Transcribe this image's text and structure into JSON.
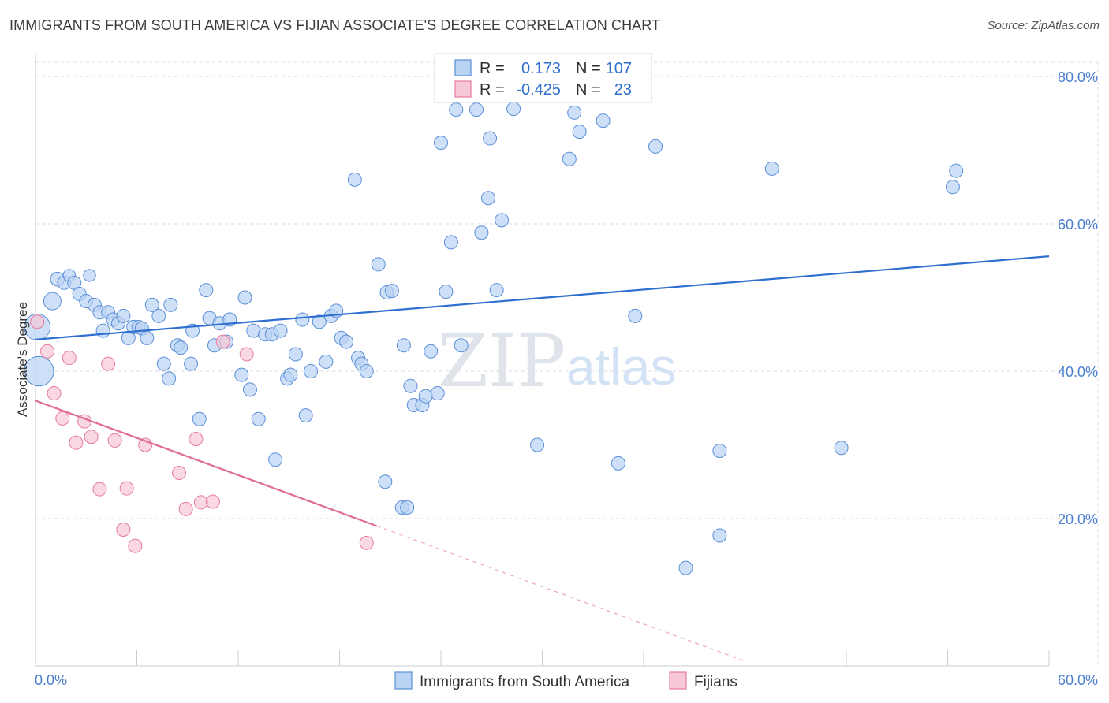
{
  "header": {
    "title": "IMMIGRANTS FROM SOUTH AMERICA VS FIJIAN ASSOCIATE'S DEGREE CORRELATION CHART",
    "source": "Source: ZipAtlas.com"
  },
  "watermark": {
    "zip": "ZIP",
    "atlas": "atlas"
  },
  "colors": {
    "blue": "#5b8fd8",
    "blue_fill": "#b9d3f3",
    "blue_line": "#2e6fcf",
    "pink": "#e77ca0",
    "pink_fill": "#f7c8d6",
    "pink_line": "#e06b96",
    "grid": "#d9dde3",
    "tick_text": "#4a7fd0"
  },
  "chart_data": {
    "type": "scatter",
    "title": "IMMIGRANTS FROM SOUTH AMERICA VS FIJIAN ASSOCIATE'S DEGREE CORRELATION CHART",
    "xlabel": "",
    "ylabel": "Associate's Degree",
    "xlim": [
      0,
      60
    ],
    "ylim": [
      0,
      80
    ],
    "x_tick_labels": [
      "0.0%",
      "60.0%"
    ],
    "y_ticks": [
      20,
      40,
      60,
      80
    ],
    "y_tick_labels": [
      "20.0%",
      "40.0%",
      "60.0%",
      "80.0%"
    ],
    "grid": true,
    "legend_stats": [
      {
        "r_label": "R =",
        "r_value": "0.173",
        "n_label": "N =",
        "n_value": "107"
      },
      {
        "r_label": "R =",
        "r_value": "-0.425",
        "n_label": "N =",
        "n_value": "23"
      }
    ],
    "series": [
      {
        "name": "Immigrants from South America",
        "trend": {
          "x": [
            0,
            60
          ],
          "y": [
            44.3,
            55.6
          ],
          "dashed_to_x": null
        },
        "points": [
          [
            0.1,
            46,
            30
          ],
          [
            0.2,
            40,
            34
          ],
          [
            1,
            49.5,
            20
          ],
          [
            1.3,
            52.5,
            16
          ],
          [
            1.7,
            52,
            12
          ],
          [
            2,
            53,
            14
          ],
          [
            2.3,
            52,
            12
          ],
          [
            2.6,
            50.5,
            12
          ],
          [
            3,
            49.5,
            12
          ],
          [
            3.2,
            53,
            14
          ],
          [
            3.5,
            49,
            12
          ],
          [
            3.8,
            48,
            12
          ],
          [
            4,
            45.5,
            12
          ],
          [
            4.3,
            48,
            12
          ],
          [
            4.6,
            47,
            12
          ],
          [
            4.9,
            46.5,
            12
          ],
          [
            5.2,
            47.5,
            12
          ],
          [
            5.5,
            44.5,
            12
          ],
          [
            5.8,
            46,
            12
          ],
          [
            6.1,
            46,
            12
          ],
          [
            6.3,
            45.8,
            12
          ],
          [
            6.6,
            44.5,
            12
          ],
          [
            6.9,
            49,
            12
          ],
          [
            7.3,
            47.5,
            12
          ],
          [
            7.6,
            41,
            12
          ],
          [
            7.9,
            39,
            12
          ],
          [
            8,
            49,
            12
          ],
          [
            8.4,
            43.5,
            12
          ],
          [
            8.6,
            43.2,
            12
          ],
          [
            9.2,
            41,
            12
          ],
          [
            9.3,
            45.5,
            12
          ],
          [
            9.7,
            33.5,
            12
          ],
          [
            10.1,
            51,
            12
          ],
          [
            10.3,
            47.2,
            12
          ],
          [
            10.6,
            43.5,
            12
          ],
          [
            10.9,
            46.5,
            12
          ],
          [
            11.3,
            44,
            12
          ],
          [
            11.5,
            47,
            12
          ],
          [
            12.2,
            39.5,
            12
          ],
          [
            12.4,
            50,
            12
          ],
          [
            12.7,
            37.5,
            12
          ],
          [
            12.9,
            45.5,
            12
          ],
          [
            13.2,
            33.5,
            12
          ],
          [
            13.6,
            45,
            12
          ],
          [
            14,
            45,
            12
          ],
          [
            14.2,
            28,
            12
          ],
          [
            14.5,
            45.5,
            12
          ],
          [
            14.9,
            39,
            12
          ],
          [
            15.1,
            39.5,
            12
          ],
          [
            15.4,
            42.3,
            12
          ],
          [
            15.8,
            47,
            12
          ],
          [
            16,
            34,
            12
          ],
          [
            16.3,
            40,
            12
          ],
          [
            16.8,
            46.7,
            12
          ],
          [
            17.2,
            41.3,
            12
          ],
          [
            17.5,
            47.5,
            12
          ],
          [
            17.8,
            48.2,
            12
          ],
          [
            18.1,
            44.5,
            12
          ],
          [
            18.4,
            44,
            12
          ],
          [
            18.9,
            66,
            12
          ],
          [
            19.1,
            41.8,
            12
          ],
          [
            19.3,
            41,
            12
          ],
          [
            19.6,
            40,
            12
          ],
          [
            20.3,
            54.5,
            12
          ],
          [
            20.7,
            25,
            12
          ],
          [
            20.8,
            50.7,
            12
          ],
          [
            21.1,
            50.9,
            12
          ],
          [
            21.7,
            21.5,
            12
          ],
          [
            22,
            21.5,
            12
          ],
          [
            21.8,
            43.5,
            12
          ],
          [
            22.2,
            38,
            12
          ],
          [
            22.4,
            35.4,
            12
          ],
          [
            22.9,
            35.4,
            12
          ],
          [
            23.1,
            36.6,
            12
          ],
          [
            23.4,
            42.7,
            12
          ],
          [
            23.8,
            37,
            12
          ],
          [
            24,
            71,
            12
          ],
          [
            24.3,
            50.8,
            12
          ],
          [
            24.6,
            57.5,
            12
          ],
          [
            24.9,
            75.5,
            12
          ],
          [
            25.2,
            43.5,
            12
          ],
          [
            26.1,
            75.5,
            12
          ],
          [
            26.4,
            58.8,
            12
          ],
          [
            26.8,
            63.5,
            12
          ],
          [
            26.9,
            71.6,
            12
          ],
          [
            27.3,
            51,
            12
          ],
          [
            27.6,
            60.5,
            12
          ],
          [
            28.3,
            75.6,
            12
          ],
          [
            29.7,
            30,
            12
          ],
          [
            31.6,
            68.8,
            12
          ],
          [
            31.9,
            75.1,
            12
          ],
          [
            32.2,
            72.5,
            12
          ],
          [
            33.6,
            74,
            12
          ],
          [
            34.5,
            27.5,
            12
          ],
          [
            35.5,
            47.5,
            12
          ],
          [
            36.7,
            70.5,
            12
          ],
          [
            40.5,
            29.2,
            12
          ],
          [
            40.5,
            17.7,
            12
          ],
          [
            38.5,
            13.3,
            12
          ],
          [
            43.6,
            67.5,
            12
          ],
          [
            47.7,
            29.6,
            12
          ],
          [
            54.3,
            65,
            12
          ],
          [
            54.5,
            67.2,
            12
          ]
        ]
      },
      {
        "name": "Fijians",
        "trend": {
          "x": [
            0,
            20.2
          ],
          "y": [
            36,
            19
          ],
          "dashed_to_x": 42
        },
        "points": [
          [
            0.1,
            46.7,
            12
          ],
          [
            0.7,
            42.7,
            12
          ],
          [
            1.1,
            37,
            12
          ],
          [
            1.6,
            33.6,
            12
          ],
          [
            2,
            41.8,
            12
          ],
          [
            2.4,
            30.3,
            12
          ],
          [
            2.9,
            33.2,
            12
          ],
          [
            3.3,
            31.1,
            12
          ],
          [
            3.8,
            24,
            12
          ],
          [
            4.3,
            41,
            12
          ],
          [
            4.7,
            30.6,
            12
          ],
          [
            5.2,
            18.5,
            12
          ],
          [
            5.4,
            24.1,
            12
          ],
          [
            5.9,
            16.3,
            12
          ],
          [
            6.5,
            30,
            12
          ],
          [
            8.5,
            26.2,
            12
          ],
          [
            8.9,
            21.3,
            12
          ],
          [
            9.5,
            30.8,
            12
          ],
          [
            9.8,
            22.2,
            12
          ],
          [
            10.5,
            22.3,
            12
          ],
          [
            11.1,
            44,
            12
          ],
          [
            12.5,
            42.3,
            12
          ],
          [
            19.6,
            16.7,
            12
          ]
        ]
      }
    ]
  },
  "legend_bottom": {
    "items": [
      {
        "label": "Immigrants from South America"
      },
      {
        "label": "Fijians"
      }
    ]
  }
}
